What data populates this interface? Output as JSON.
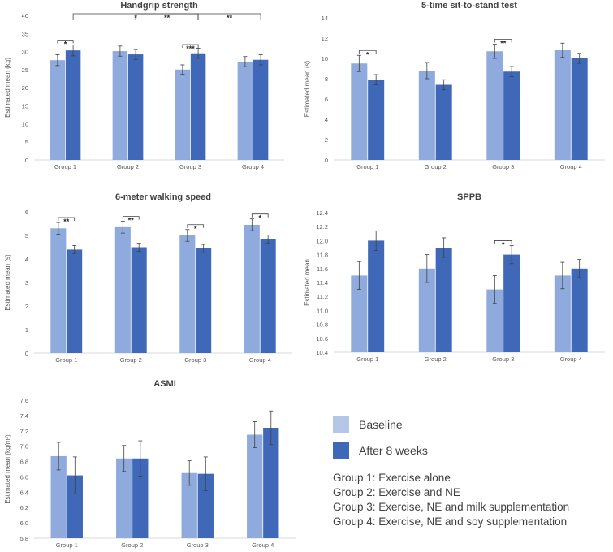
{
  "colors": {
    "baseline": "#8eA5d9",
    "after": "#3e68b8",
    "axis": "#d9d9d9",
    "text": "#595959",
    "title": "#404040",
    "error": "#404040"
  },
  "legend": {
    "baseline": "Baseline",
    "after": "After 8 weeks",
    "groups": [
      "Group 1: Exercise alone",
      "Group 2: Exercise and NE",
      "Group 3: Exercise, NE and milk supplementation",
      "Group 4: Exercise, NE and soy supplementation"
    ]
  },
  "chart_data": [
    {
      "id": "handgrip",
      "type": "bar",
      "title": "Handgrip strength",
      "ylabel": "Estimated mean (kg)",
      "categories": [
        "Group 1",
        "Group 2",
        "Group 3",
        "Group 4"
      ],
      "ylim": [
        0,
        40
      ],
      "ystep": 5,
      "tick_decimals": 0,
      "series": [
        {
          "name": "Baseline",
          "values": [
            27.6,
            30.1,
            25.0,
            27.2
          ],
          "errors": [
            1.5,
            1.4,
            1.3,
            1.4
          ]
        },
        {
          "name": "After 8 weeks",
          "values": [
            30.3,
            29.2,
            29.5,
            27.7
          ],
          "errors": [
            1.5,
            1.4,
            1.4,
            1.4
          ]
        }
      ],
      "annotations": [
        {
          "label": "*",
          "from": [
            0,
            0
          ],
          "to": [
            0,
            1
          ]
        },
        {
          "label": "***",
          "from": [
            2,
            0
          ],
          "to": [
            2,
            1
          ]
        },
        {
          "label": "*",
          "from": [
            0,
            1
          ],
          "to": [
            2,
            1
          ]
        },
        {
          "label": "**",
          "from": [
            1,
            1
          ],
          "to": [
            2,
            1
          ]
        },
        {
          "label": "**",
          "from": [
            2,
            1
          ],
          "to": [
            3,
            1
          ]
        }
      ]
    },
    {
      "id": "sit-to-stand",
      "type": "bar",
      "title": "5-time sit-to-stand test",
      "ylabel": "Estimated mean (s)",
      "categories": [
        "Group 1",
        "Group 2",
        "Group 3",
        "Group 4"
      ],
      "ylim": [
        0,
        14
      ],
      "ystep": 2,
      "tick_decimals": 0,
      "series": [
        {
          "name": "Baseline",
          "values": [
            9.5,
            8.8,
            10.7,
            10.8
          ],
          "errors": [
            0.8,
            0.8,
            0.7,
            0.7
          ]
        },
        {
          "name": "After 8 weeks",
          "values": [
            7.9,
            7.4,
            8.7,
            10.0
          ],
          "errors": [
            0.5,
            0.5,
            0.5,
            0.5
          ]
        }
      ],
      "annotations": [
        {
          "label": "*",
          "from": [
            0,
            0
          ],
          "to": [
            0,
            1
          ]
        },
        {
          "label": "**",
          "from": [
            2,
            0
          ],
          "to": [
            2,
            1
          ]
        }
      ]
    },
    {
      "id": "walking-speed",
      "type": "bar",
      "title": "6-meter walking speed",
      "ylabel": "Estimated mean (s)",
      "categories": [
        "Group 1",
        "Group 2",
        "Group 3",
        "Group 4"
      ],
      "ylim": [
        0,
        6
      ],
      "ystep": 0.5,
      "tick_decimals": 0,
      "ticks_integer_only": true,
      "series": [
        {
          "name": "Baseline",
          "values": [
            5.3,
            5.35,
            5.0,
            5.45
          ],
          "errors": [
            0.25,
            0.25,
            0.25,
            0.25
          ]
        },
        {
          "name": "After 8 weeks",
          "values": [
            4.4,
            4.5,
            4.45,
            4.85
          ],
          "errors": [
            0.17,
            0.17,
            0.17,
            0.17
          ]
        }
      ],
      "annotations": [
        {
          "label": "**",
          "from": [
            0,
            0
          ],
          "to": [
            0,
            1
          ]
        },
        {
          "label": "**",
          "from": [
            1,
            0
          ],
          "to": [
            1,
            1
          ]
        },
        {
          "label": "*",
          "from": [
            2,
            0
          ],
          "to": [
            2,
            1
          ]
        },
        {
          "label": "*",
          "from": [
            3,
            0
          ],
          "to": [
            3,
            1
          ]
        }
      ]
    },
    {
      "id": "sppb",
      "type": "bar",
      "title": "SPPB",
      "ylabel": "Estimated mean",
      "categories": [
        "Group 1",
        "Group 2",
        "Group 3",
        "Group 4"
      ],
      "ylim": [
        10.4,
        12.4
      ],
      "ystep": 0.2,
      "tick_decimals": 1,
      "series": [
        {
          "name": "Baseline",
          "values": [
            11.5,
            11.6,
            11.3,
            11.5
          ],
          "errors": [
            0.2,
            0.2,
            0.2,
            0.19
          ]
        },
        {
          "name": "After 8 weeks",
          "values": [
            12.0,
            11.9,
            11.8,
            11.6
          ],
          "errors": [
            0.14,
            0.14,
            0.13,
            0.13
          ]
        }
      ],
      "annotations": [
        {
          "label": "*",
          "from": [
            2,
            0
          ],
          "to": [
            2,
            1
          ]
        }
      ]
    },
    {
      "id": "asmi",
      "type": "bar",
      "title": "ASMI",
      "ylabel": "Estimated mean (kg/m²)",
      "categories": [
        "Group 1",
        "Group 2",
        "Group 3",
        "Group 4"
      ],
      "ylim": [
        5.8,
        7.6
      ],
      "ystep": 0.2,
      "tick_decimals": 1,
      "series": [
        {
          "name": "Baseline",
          "values": [
            6.87,
            6.84,
            6.65,
            7.15
          ],
          "errors": [
            0.18,
            0.17,
            0.16,
            0.17
          ]
        },
        {
          "name": "After 8 weeks",
          "values": [
            6.62,
            6.84,
            6.64,
            7.24
          ],
          "errors": [
            0.24,
            0.23,
            0.22,
            0.22
          ]
        }
      ],
      "annotations": []
    }
  ]
}
